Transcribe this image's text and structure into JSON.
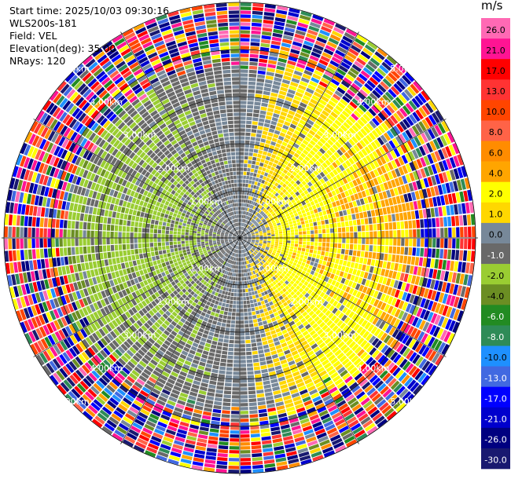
{
  "header": {
    "start_time": "Start time: 2025/10/03 09:30:16",
    "instrument": "WLS200s-181",
    "field": "Field: VEL",
    "elevation": "Elevation(deg): 35.00",
    "nrays": "NRays: 120"
  },
  "colorbar": {
    "unit": "m/s",
    "levels": [
      "26.0",
      "21.0",
      "17.0",
      "13.0",
      "10.0",
      "8.0",
      "6.0",
      "4.0",
      "2.0",
      "1.0",
      "0.0",
      "-1.0",
      "-2.0",
      "-4.0",
      "-6.0",
      "-8.0",
      "-10.0",
      "-13.0",
      "-17.0",
      "-21.0",
      "-26.0",
      "-30.0"
    ],
    "colors": [
      "#ff69b4",
      "#ff1493",
      "#ff0000",
      "#ff3333",
      "#ff4500",
      "#ff6347",
      "#ff8c00",
      "#ffa500",
      "#ffff00",
      "#ffd700",
      "#778899",
      "#696969",
      "#9acd32",
      "#6b8e23",
      "#228b22",
      "#2e8b57",
      "#1e90ff",
      "#4169e1",
      "#0000ff",
      "#0000cd",
      "#000080",
      "#191970"
    ]
  },
  "chart_data": {
    "type": "heatmap",
    "title": "",
    "projection": "polar (PPI)",
    "field": "VEL",
    "unit": "m/s",
    "n_rays": 120,
    "range_rings_km": [
      1,
      2,
      3,
      4,
      5
    ],
    "range_ring_labels": [
      "1.00km",
      "2.00km",
      "3.00km",
      "4.00km",
      "5.00km"
    ],
    "max_range_km": 5,
    "range_gates": 60,
    "pattern": {
      "west_sector_velocity": -1.5,
      "east_sector_velocity": 3.0,
      "near_zero_core_radius_km": 1.0,
      "coherent_range_km": 3.5,
      "noise_beyond_km": 4.0
    }
  }
}
